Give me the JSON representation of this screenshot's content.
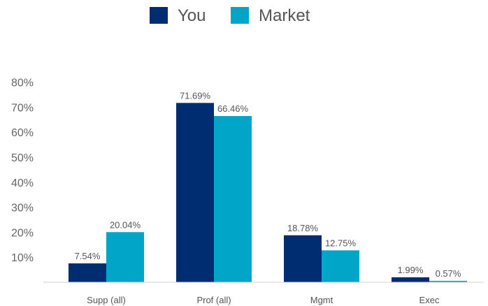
{
  "chart_data": {
    "type": "bar",
    "categories": [
      "Supp (all)",
      "Prof (all)",
      "Mgmt",
      "Exec"
    ],
    "series": [
      {
        "name": "You",
        "color": "#002d72",
        "values": [
          7.54,
          71.69,
          18.78,
          1.99
        ],
        "labels": [
          "7.54%",
          "71.69%",
          "18.78%",
          "1.99%"
        ]
      },
      {
        "name": "Market",
        "color": "#00a5c8",
        "values": [
          20.04,
          66.46,
          12.75,
          0.57
        ],
        "labels": [
          "20.04%",
          "66.46%",
          "12.75%",
          "0.57%"
        ]
      }
    ],
    "yticks": [
      "10%",
      "20%",
      "30%",
      "40%",
      "50%",
      "60%",
      "70%",
      "80%"
    ],
    "ylim": [
      0,
      80
    ],
    "legend_position": "top-center",
    "grid": false
  }
}
